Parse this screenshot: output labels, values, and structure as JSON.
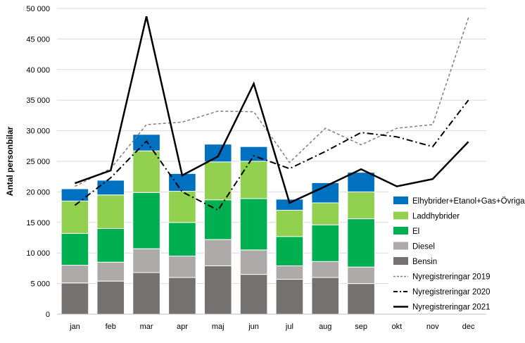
{
  "chart_data": {
    "type": "bar",
    "stacked": true,
    "title": "",
    "xlabel": "",
    "ylabel": "Antal personbilar",
    "ylim": [
      0,
      50000
    ],
    "ytick_step": 5000,
    "ytick_labels": [
      "0",
      "5 000",
      "10 000",
      "15 000",
      "20 000",
      "25 000",
      "30 000",
      "35 000",
      "40 000",
      "45 000",
      "50 000"
    ],
    "categories": [
      "jan",
      "feb",
      "mar",
      "apr",
      "maj",
      "jun",
      "jul",
      "aug",
      "sep",
      "okt",
      "nov",
      "dec"
    ],
    "series": [
      {
        "name": "Bensin",
        "color": "#767171",
        "values": [
          5100,
          5400,
          6800,
          6000,
          7900,
          6500,
          5700,
          6000,
          5000,
          null,
          null,
          null
        ]
      },
      {
        "name": "Diesel",
        "color": "#aeaaaa",
        "values": [
          2900,
          3100,
          3900,
          3500,
          4300,
          4000,
          2200,
          2600,
          2700,
          null,
          null,
          null
        ]
      },
      {
        "name": "El",
        "color": "#00b050",
        "values": [
          5200,
          5500,
          9200,
          5500,
          6500,
          8400,
          4800,
          6000,
          7900,
          null,
          null,
          null
        ]
      },
      {
        "name": "Laddhybrider",
        "color": "#92d050",
        "values": [
          5300,
          5500,
          6800,
          5100,
          6200,
          6100,
          4300,
          3600,
          4400,
          null,
          null,
          null
        ]
      },
      {
        "name": "Elhybrider+Etanol+Gas+Övriga",
        "color": "#0070c0",
        "values": [
          2000,
          2400,
          2700,
          2900,
          2900,
          2400,
          1800,
          3300,
          3200,
          null,
          null,
          null
        ]
      }
    ],
    "lines": [
      {
        "name": "Nyregistreringar 2019",
        "style": "dashed",
        "color": "#7f7f7f",
        "values": [
          20900,
          23800,
          31000,
          31400,
          33200,
          33100,
          24800,
          30400,
          27700,
          30400,
          31000,
          48500
        ]
      },
      {
        "name": "Nyregistreringar 2020",
        "style": "dashdot",
        "color": "#000000",
        "values": [
          17800,
          22300,
          28300,
          20000,
          17000,
          25900,
          23800,
          26600,
          29700,
          29000,
          27400,
          35000
        ]
      },
      {
        "name": "Nyregistreringar 2021",
        "style": "solid",
        "color": "#000000",
        "values": [
          21400,
          23500,
          48700,
          22700,
          25800,
          37700,
          18200,
          20900,
          23700,
          20900,
          22100,
          28200
        ]
      }
    ],
    "legend_order": [
      "Elhybrider+Etanol+Gas+Övriga",
      "Laddhybrider",
      "El",
      "Diesel",
      "Bensin",
      "Nyregistreringar 2019",
      "Nyregistreringar 2020",
      "Nyregistreringar 2021"
    ],
    "legend_position": "right"
  }
}
